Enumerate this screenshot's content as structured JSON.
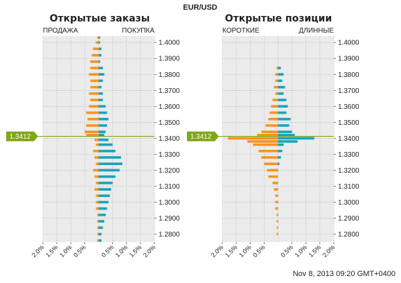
{
  "header": {
    "symbol": "EUR/USD",
    "timestamp": "Nov 8, 2013 09:20 GMT+0400"
  },
  "colors": {
    "sell": "#F7941D",
    "buy": "#13A5BE",
    "price_line": "#7FA717",
    "panel_bg": "#EBEBEB",
    "grid": "#9A9A9A"
  },
  "current_price": {
    "label": "1.3412",
    "value": 1.3412
  },
  "chart_data": [
    {
      "type": "bar",
      "orientation": "horizontal-mirrored",
      "title": "Открытые заказы",
      "left_label": "ПРОДАЖА",
      "right_label": "ПОКУПКА",
      "y_ticks": [
        "1.4000",
        "1.3900",
        "1.3800",
        "1.3700",
        "1.3600",
        "1.3500",
        "1.3400",
        "1.3300",
        "1.3200",
        "1.3100",
        "1.3000",
        "1.2900",
        "1.2800"
      ],
      "y_range": [
        1.275,
        1.404
      ],
      "x_ticks": [
        "2.0%",
        "1.5%",
        "1.0%",
        "0.5%",
        "0.5%",
        "1.0%",
        "1.5%",
        "2.0%"
      ],
      "x_range": [
        -2.0,
        2.0
      ],
      "series": [
        {
          "name": "ПРОДАЖА",
          "bins": [
            [
              1.403,
              -0.05
            ],
            [
              1.4,
              -0.1
            ],
            [
              1.396,
              -0.2
            ],
            [
              1.392,
              -0.25
            ],
            [
              1.388,
              -0.3
            ],
            [
              1.384,
              -0.3
            ],
            [
              1.38,
              -0.35
            ],
            [
              1.376,
              -0.3
            ],
            [
              1.372,
              -0.3
            ],
            [
              1.368,
              -0.35
            ],
            [
              1.364,
              -0.3
            ],
            [
              1.36,
              -0.35
            ],
            [
              1.356,
              -0.45
            ],
            [
              1.352,
              -0.4
            ],
            [
              1.348,
              -0.45
            ],
            [
              1.344,
              -0.5
            ],
            [
              1.342,
              -0.45
            ],
            [
              1.339,
              -0.15
            ],
            [
              1.336,
              -0.1
            ],
            [
              1.332,
              -0.2
            ],
            [
              1.328,
              -0.15
            ],
            [
              1.324,
              -0.1
            ],
            [
              1.32,
              -0.2
            ],
            [
              1.316,
              -0.15
            ],
            [
              1.312,
              -0.1
            ],
            [
              1.308,
              -0.15
            ],
            [
              1.304,
              -0.1
            ],
            [
              1.3,
              -0.1
            ],
            [
              1.296,
              -0.1
            ],
            [
              1.292,
              -0.05
            ],
            [
              1.288,
              -0.05
            ],
            [
              1.284,
              -0.05
            ],
            [
              1.28,
              -0.05
            ],
            [
              1.276,
              -0.05
            ]
          ]
        },
        {
          "name": "ПОКУПКА",
          "bins": [
            [
              1.403,
              0.05
            ],
            [
              1.4,
              0.05
            ],
            [
              1.396,
              0.1
            ],
            [
              1.392,
              0.1
            ],
            [
              1.388,
              0.05
            ],
            [
              1.384,
              0.15
            ],
            [
              1.38,
              0.2
            ],
            [
              1.376,
              0.15
            ],
            [
              1.372,
              0.1
            ],
            [
              1.368,
              0.15
            ],
            [
              1.364,
              0.15
            ],
            [
              1.36,
              0.25
            ],
            [
              1.356,
              0.3
            ],
            [
              1.352,
              0.35
            ],
            [
              1.348,
              0.3
            ],
            [
              1.344,
              0.25
            ],
            [
              1.342,
              0.2
            ],
            [
              1.339,
              0.35
            ],
            [
              1.336,
              0.5
            ],
            [
              1.332,
              0.6
            ],
            [
              1.328,
              0.8
            ],
            [
              1.324,
              0.85
            ],
            [
              1.32,
              0.75
            ],
            [
              1.316,
              0.6
            ],
            [
              1.312,
              0.5
            ],
            [
              1.308,
              0.45
            ],
            [
              1.304,
              0.4
            ],
            [
              1.3,
              0.35
            ],
            [
              1.296,
              0.3
            ],
            [
              1.292,
              0.25
            ],
            [
              1.288,
              0.2
            ],
            [
              1.284,
              0.15
            ],
            [
              1.28,
              0.1
            ],
            [
              1.276,
              0.1
            ]
          ]
        }
      ]
    },
    {
      "type": "bar",
      "orientation": "horizontal-mirrored",
      "title": "Открытые позиции",
      "left_label": "КОРОТКИЕ",
      "right_label": "ДЛИННЫЕ",
      "y_ticks": [
        "1.4000",
        "1.3900",
        "1.3800",
        "1.3700",
        "1.3600",
        "1.3500",
        "1.3400",
        "1.3300",
        "1.3200",
        "1.3100",
        "1.3000",
        "1.2900",
        "1.2800"
      ],
      "y_range": [
        1.275,
        1.404
      ],
      "x_ticks": [
        "2.0%",
        "1.5%",
        "1.0%",
        "0.5%",
        "0.5%",
        "1.0%",
        "1.5%",
        "2.0%"
      ],
      "x_range": [
        -2.0,
        2.0
      ],
      "series": [
        {
          "name": "КОРОТКИЕ",
          "bins": [
            [
              1.384,
              -0.05
            ],
            [
              1.38,
              -0.1
            ],
            [
              1.376,
              -0.1
            ],
            [
              1.372,
              -0.15
            ],
            [
              1.368,
              -0.1
            ],
            [
              1.364,
              -0.2
            ],
            [
              1.36,
              -0.25
            ],
            [
              1.356,
              -0.3
            ],
            [
              1.352,
              -0.35
            ],
            [
              1.348,
              -0.45
            ],
            [
              1.344,
              -0.6
            ],
            [
              1.342,
              -0.75
            ],
            [
              1.34,
              -1.8
            ],
            [
              1.338,
              -1.1
            ],
            [
              1.336,
              -0.9
            ],
            [
              1.332,
              -0.7
            ],
            [
              1.328,
              -0.6
            ],
            [
              1.324,
              -0.5
            ],
            [
              1.32,
              -0.4
            ],
            [
              1.316,
              -0.35
            ],
            [
              1.312,
              -0.2
            ],
            [
              1.308,
              -0.15
            ],
            [
              1.304,
              -0.1
            ],
            [
              1.3,
              -0.1
            ],
            [
              1.296,
              -0.1
            ],
            [
              1.292,
              -0.05
            ],
            [
              1.288,
              -0.05
            ],
            [
              1.284,
              -0.05
            ],
            [
              1.28,
              -0.05
            ]
          ]
        },
        {
          "name": "ДЛИННЫЕ",
          "bins": [
            [
              1.384,
              0.1
            ],
            [
              1.38,
              0.2
            ],
            [
              1.376,
              0.15
            ],
            [
              1.372,
              0.25
            ],
            [
              1.368,
              0.2
            ],
            [
              1.364,
              0.3
            ],
            [
              1.36,
              0.35
            ],
            [
              1.356,
              0.3
            ],
            [
              1.352,
              0.45
            ],
            [
              1.348,
              0.4
            ],
            [
              1.344,
              0.5
            ],
            [
              1.342,
              0.6
            ],
            [
              1.34,
              1.3
            ],
            [
              1.338,
              0.7
            ],
            [
              1.336,
              0.2
            ],
            [
              1.332,
              0.15
            ],
            [
              1.328,
              0.1
            ],
            [
              1.324,
              0.05
            ]
          ]
        }
      ]
    }
  ]
}
